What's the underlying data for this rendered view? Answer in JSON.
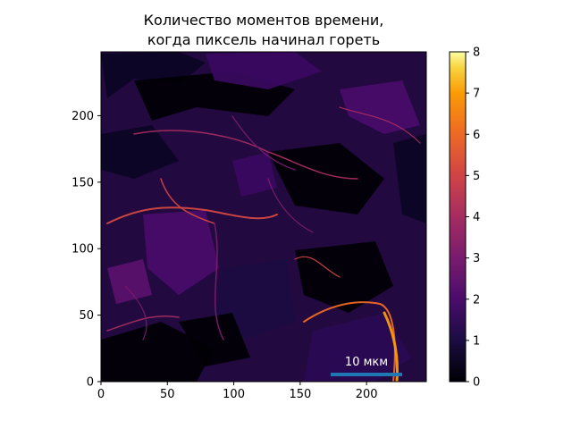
{
  "chart_data": {
    "type": "heatmap",
    "title_line1": "Количество моментов времени,",
    "title_line2": "когда пиксель начинал гореть",
    "xlabel": "",
    "ylabel": "",
    "xlim": [
      0,
      245
    ],
    "ylim": [
      0,
      248
    ],
    "x_ticks": [
      0,
      50,
      100,
      150,
      200
    ],
    "y_ticks": [
      0,
      50,
      100,
      150,
      200
    ],
    "colorbar": {
      "colormap": "inferno",
      "range": [
        0,
        8
      ],
      "ticks": [
        0,
        1,
        2,
        3,
        4,
        5,
        6,
        7,
        8
      ]
    },
    "scale_bar": {
      "label": "10 мкм",
      "color": "#1f77b4"
    },
    "grid": false
  }
}
